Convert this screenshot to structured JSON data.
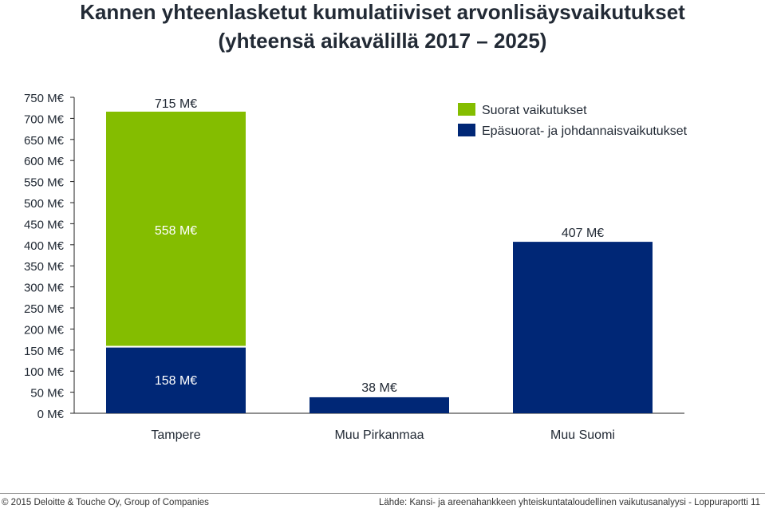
{
  "title_line1": "Kannen yhteenlasketut kumulatiiviset arvonlisäysvaikutukset",
  "title_line2": "(yhteensä aikavälillä 2017 – 2025)",
  "footer": {
    "left": "© 2015 Deloitte & Touche Oy, Group of Companies",
    "right": "Lähde: Kansi- ja areenahankkeen yhteiskuntataloudellinen vaikutusanalyysi - Loppuraportti   11"
  },
  "colors": {
    "direct": "#84bd00",
    "indirect": "#002776",
    "text": "#222a35"
  },
  "chart_data": {
    "type": "bar",
    "stacked": true,
    "categories": [
      "Tampere",
      "Muu Pirkanmaa",
      "Muu Suomi"
    ],
    "series": [
      {
        "name": "Epäsuorat- ja johdannaisvaikutukset",
        "values": [
          158,
          38,
          407
        ],
        "labels": [
          "158 M€",
          "38 M€",
          "407 M€"
        ],
        "color": "#002776"
      },
      {
        "name": "Suorat vaikutukset",
        "values": [
          558,
          0,
          0
        ],
        "labels": [
          "558 M€",
          "",
          ""
        ],
        "color": "#84bd00"
      }
    ],
    "totals": [
      {
        "category": "Tampere",
        "value": 715,
        "label": "715 M€"
      }
    ],
    "legend_order": [
      "Suorat vaikutukset",
      "Epäsuorat- ja johdannaisvaikutukset"
    ],
    "legend_position": "top-right",
    "ylim": [
      0,
      750
    ],
    "yticks": [
      0,
      50,
      100,
      150,
      200,
      250,
      300,
      350,
      400,
      450,
      500,
      550,
      600,
      650,
      700,
      750
    ],
    "ytick_labels": [
      "0 M€",
      "50 M€",
      "100 M€",
      "150 M€",
      "200 M€",
      "250 M€",
      "300 M€",
      "350 M€",
      "400 M€",
      "450 M€",
      "500 M€",
      "550 M€",
      "600 M€",
      "650 M€",
      "700 M€",
      "750 M€"
    ],
    "grid": false
  }
}
